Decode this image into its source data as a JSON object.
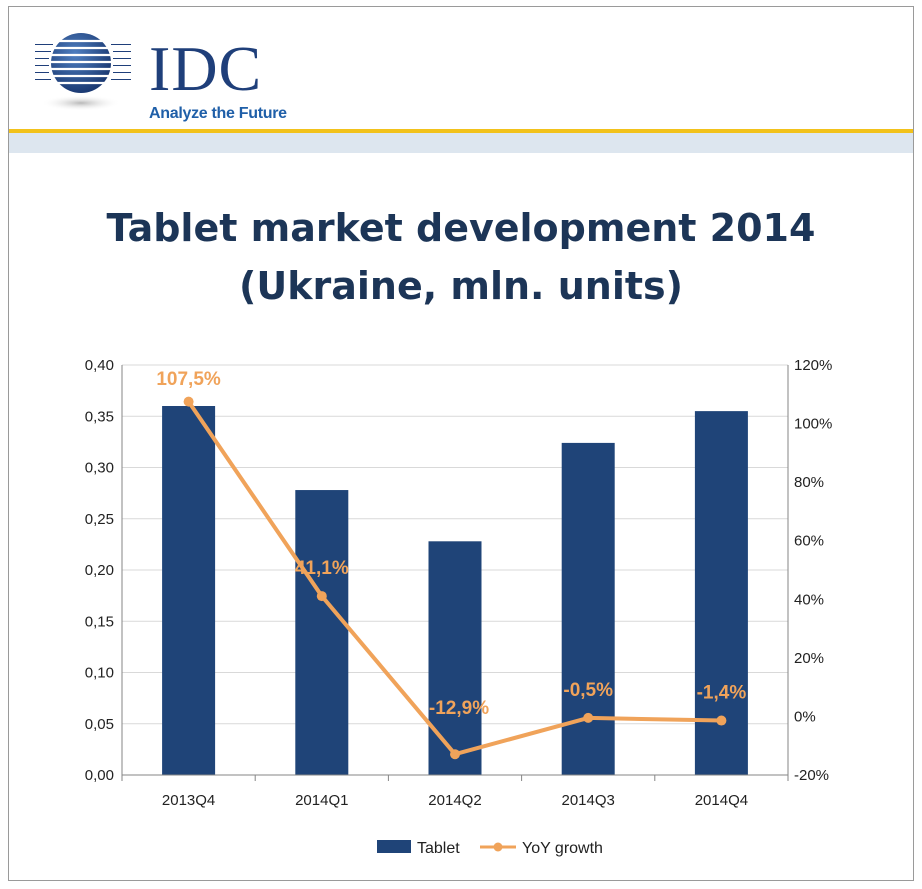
{
  "logo": {
    "brand": "IDC",
    "tagline": "Analyze the Future"
  },
  "colors": {
    "bar": "#1f4478",
    "line": "#f0a35a",
    "grid": "#d9d9d9",
    "title": "#1c3557"
  },
  "chart_data": {
    "type": "bar",
    "title_line1": "Tablet market development 2014",
    "title_line2": "(Ukraine, mln. units)",
    "categories": [
      "2013Q4",
      "2014Q1",
      "2014Q2",
      "2014Q3",
      "2014Q4"
    ],
    "y_left": {
      "min": 0,
      "max": 0.4,
      "step": 0.05,
      "tick_labels": [
        "0,00",
        "0,05",
        "0,10",
        "0,15",
        "0,20",
        "0,25",
        "0,30",
        "0,35",
        "0,40"
      ]
    },
    "y_right": {
      "min": -20,
      "max": 120,
      "step": 20,
      "tick_labels": [
        "-20%",
        "0%",
        "20%",
        "40%",
        "60%",
        "80%",
        "100%",
        "120%"
      ]
    },
    "grid": true,
    "legend_position": "bottom",
    "series": [
      {
        "name": "Tablet",
        "type": "bar",
        "axis": "left",
        "values": [
          0.36,
          0.278,
          0.228,
          0.324,
          0.355
        ]
      },
      {
        "name": "YoY growth",
        "type": "line",
        "axis": "right",
        "values": [
          107.5,
          41.1,
          -12.9,
          -0.5,
          -1.4
        ],
        "labels": [
          "107,5%",
          "41,1%",
          "-12,9%",
          "-0,5%",
          "-1,4%"
        ]
      }
    ]
  }
}
